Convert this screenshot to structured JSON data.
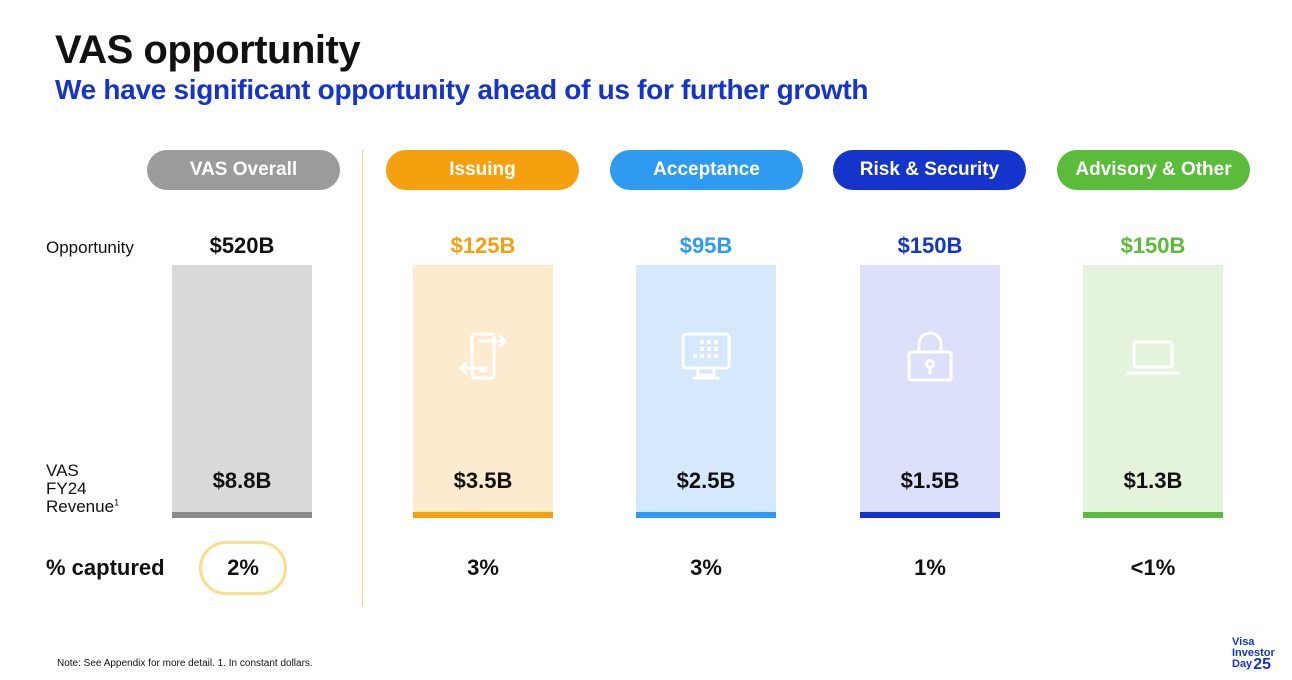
{
  "title": "VAS opportunity",
  "subtitle": "We have significant opportunity ahead of us for further growth",
  "row_labels": {
    "opportunity": "Opportunity",
    "revenue_line1": "VAS",
    "revenue_line2": "FY24",
    "revenue_line3": "Revenue",
    "revenue_footnote": "1",
    "captured": "% captured"
  },
  "categories": [
    {
      "name": "VAS Overall",
      "opportunity": "$520B",
      "revenue": "$8.8B",
      "captured": "2%",
      "color": "#9B9B9B",
      "light_color": "#D9D9D9",
      "line_color": "#8A8A8A",
      "icon": ""
    },
    {
      "name": "Issuing",
      "opportunity": "$125B",
      "revenue": "$3.5B",
      "captured": "3%",
      "color": "#F5A00F",
      "light_color": "#FDEBD0",
      "line_color": "#F5A00F",
      "icon": "phone-transfer-icon"
    },
    {
      "name": "Acceptance",
      "opportunity": "$95B",
      "revenue": "$2.5B",
      "captured": "3%",
      "color": "#2E9AF0",
      "light_color": "#D6E9FC",
      "line_color": "#2E9AF0",
      "icon": "terminal-icon"
    },
    {
      "name": "Risk & Security",
      "opportunity": "$150B",
      "revenue": "$1.5B",
      "captured": "1%",
      "color": "#1434CB",
      "light_color": "#DCE0FA",
      "line_color": "#1434CB",
      "icon": "lock-icon"
    },
    {
      "name": "Advisory & Other",
      "opportunity": "$150B",
      "revenue": "$1.3B",
      "captured": "<1%",
      "color": "#5BBB3B",
      "light_color": "#E4F4DC",
      "line_color": "#5BBB3B",
      "icon": "laptop-icon"
    }
  ],
  "note": "Note:  See Appendix for more detail.  1. In constant dollars.",
  "logo": {
    "line1": "Visa",
    "line2": "Investor",
    "line3": "Day",
    "year": "25"
  }
}
